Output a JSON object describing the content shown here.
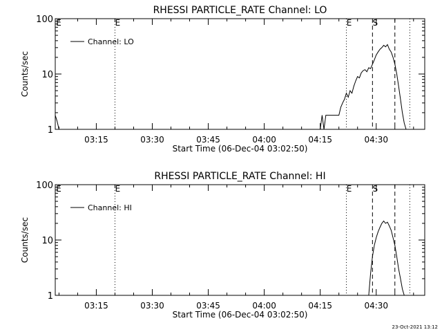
{
  "footer": {
    "timestamp": "23-Oct-2021 13:12"
  },
  "chart_data": [
    {
      "type": "line",
      "title": "RHESSI PARTICLE_RATE Channel: LO",
      "xlabel": "Start Time (06-Dec-04 03:02:50)",
      "ylabel": "Counts/sec",
      "x_unit": "time HH:MM on 06-Dec-04",
      "xlim": [
        "03:04",
        "04:43"
      ],
      "ylim": [
        1,
        100
      ],
      "y_scale": "log",
      "xticks": [
        "03:15",
        "03:30",
        "03:45",
        "04:00",
        "04:15",
        "04:30"
      ],
      "yticks": [
        "1",
        "10",
        "100"
      ],
      "legend": {
        "position": "top-left",
        "entries": [
          "Channel: LO"
        ]
      },
      "grid": false,
      "markers": [
        {
          "time": "03:20",
          "label": "E",
          "style": "dotted"
        },
        {
          "time": "04:22",
          "label": "E",
          "style": "dotted"
        },
        {
          "time": "04:29",
          "label": "S",
          "style": "dashed"
        },
        {
          "time": "04:35",
          "label": "",
          "style": "dashed"
        },
        {
          "time": "04:39",
          "label": "",
          "style": "dotted"
        }
      ],
      "series": [
        {
          "name": "Channel: LO",
          "segments": [
            {
              "x": [
                "03:04",
                "03:04:30",
                "03:05"
              ],
              "y": [
                1.8,
                1.4,
                1.0
              ]
            },
            {
              "x": [
                "04:15",
                "04:15:30",
                "04:16",
                "04:16:30",
                "04:17",
                "04:18",
                "04:19",
                "04:20",
                "04:20:30",
                "04:21",
                "04:21:30",
                "04:22",
                "04:22:30",
                "04:23",
                "04:23:30",
                "04:24",
                "04:24:30",
                "04:25",
                "04:25:30",
                "04:26",
                "04:26:30",
                "04:27",
                "04:27:30",
                "04:28",
                "04:28:30",
                "04:29",
                "04:29:30",
                "04:30",
                "04:30:30",
                "04:31",
                "04:31:30",
                "04:32",
                "04:32:30",
                "04:33",
                "04:33:30",
                "04:34",
                "04:34:30",
                "04:35",
                "04:35:30",
                "04:36",
                "04:36:30",
                "04:37",
                "04:37:30",
                "04:38"
              ],
              "y": [
                1.0,
                1.8,
                1.0,
                1.8,
                1.8,
                1.8,
                1.8,
                1.8,
                2.5,
                3.0,
                3.5,
                4.5,
                3.8,
                5.0,
                4.5,
                6.0,
                7.5,
                9.0,
                8.5,
                10.5,
                11.5,
                12.0,
                11.0,
                13.0,
                12.5,
                15.0,
                18.0,
                22.0,
                25.0,
                28.0,
                30.0,
                33.0,
                31.0,
                34.0,
                28.0,
                25.0,
                20.0,
                15.0,
                10.0,
                6.0,
                3.5,
                2.0,
                1.3,
                1.0
              ]
            }
          ]
        }
      ]
    },
    {
      "type": "line",
      "title": "RHESSI PARTICLE_RATE Channel: HI",
      "xlabel": "Start Time (06-Dec-04 03:02:50)",
      "ylabel": "Counts/sec",
      "x_unit": "time HH:MM on 06-Dec-04",
      "xlim": [
        "03:04",
        "04:43"
      ],
      "ylim": [
        1,
        100
      ],
      "y_scale": "log",
      "xticks": [
        "03:15",
        "03:30",
        "03:45",
        "04:00",
        "04:15",
        "04:30"
      ],
      "yticks": [
        "1",
        "10",
        "100"
      ],
      "legend": {
        "position": "top-left",
        "entries": [
          "Channel: HI"
        ]
      },
      "grid": false,
      "markers": [
        {
          "time": "03:20",
          "label": "E",
          "style": "dotted"
        },
        {
          "time": "04:22",
          "label": "E",
          "style": "dotted"
        },
        {
          "time": "04:29",
          "label": "S",
          "style": "dashed"
        },
        {
          "time": "04:35",
          "label": "",
          "style": "dashed"
        },
        {
          "time": "04:39",
          "label": "",
          "style": "dotted"
        }
      ],
      "series": [
        {
          "name": "Channel: HI",
          "segments": [
            {
              "x": [
                "04:28",
                "04:28:30",
                "04:29",
                "04:29:30",
                "04:30",
                "04:30:30",
                "04:31",
                "04:31:30",
                "04:32",
                "04:32:30",
                "04:33",
                "04:33:30",
                "04:34",
                "04:34:30",
                "04:35",
                "04:35:30",
                "04:36",
                "04:36:30",
                "04:37",
                "04:37:30"
              ],
              "y": [
                1.0,
                2.5,
                5.0,
                8.0,
                11.0,
                14.0,
                17.0,
                20.0,
                22.0,
                20.0,
                21.0,
                18.0,
                15.0,
                11.0,
                8.0,
                5.0,
                3.0,
                2.0,
                1.3,
                1.0
              ]
            }
          ]
        }
      ]
    }
  ]
}
